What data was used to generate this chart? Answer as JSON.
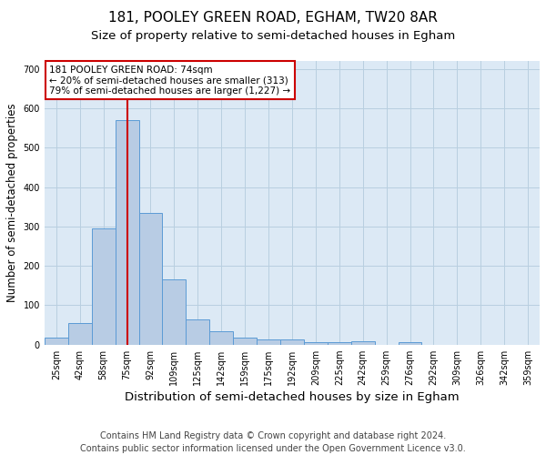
{
  "title1": "181, POOLEY GREEN ROAD, EGHAM, TW20 8AR",
  "title2": "Size of property relative to semi-detached houses in Egham",
  "xlabel": "Distribution of semi-detached houses by size in Egham",
  "ylabel": "Number of semi-detached properties",
  "categories": [
    "25sqm",
    "42sqm",
    "58sqm",
    "75sqm",
    "92sqm",
    "109sqm",
    "125sqm",
    "142sqm",
    "159sqm",
    "175sqm",
    "192sqm",
    "209sqm",
    "225sqm",
    "242sqm",
    "259sqm",
    "276sqm",
    "292sqm",
    "309sqm",
    "326sqm",
    "342sqm",
    "359sqm"
  ],
  "values": [
    18,
    55,
    295,
    570,
    335,
    165,
    63,
    34,
    18,
    14,
    14,
    6,
    7,
    8,
    0,
    6,
    0,
    0,
    0,
    0,
    0
  ],
  "bar_color": "#b8cce4",
  "bar_edge_color": "#5b9bd5",
  "red_line_index": 3,
  "annotation_title": "181 POOLEY GREEN ROAD: 74sqm",
  "annotation_line1": "← 20% of semi-detached houses are smaller (313)",
  "annotation_line2": "79% of semi-detached houses are larger (1,227) →",
  "annotation_box_color": "#ffffff",
  "annotation_box_edge": "#cc0000",
  "red_line_color": "#cc0000",
  "ylim": [
    0,
    720
  ],
  "yticks": [
    0,
    100,
    200,
    300,
    400,
    500,
    600,
    700
  ],
  "footer1": "Contains HM Land Registry data © Crown copyright and database right 2024.",
  "footer2": "Contains public sector information licensed under the Open Government Licence v3.0.",
  "background_color": "#ffffff",
  "plot_bg_color": "#dce9f5",
  "grid_color": "#b8cfe0",
  "title1_fontsize": 11,
  "title2_fontsize": 9.5,
  "xlabel_fontsize": 9.5,
  "ylabel_fontsize": 8.5,
  "footer_fontsize": 7,
  "tick_fontsize": 7,
  "ann_fontsize": 7.5
}
